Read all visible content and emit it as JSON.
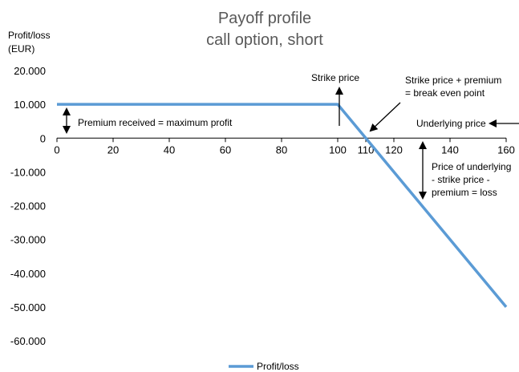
{
  "chart_data": {
    "type": "line",
    "title_lines": [
      "Payoff profile",
      "call option, short"
    ],
    "ylabel_lines": [
      "Profit/loss",
      "(EUR)"
    ],
    "xlabel": "Underlying price",
    "xlim": [
      0,
      160
    ],
    "ylim": [
      -60000,
      20000
    ],
    "x_ticks": [
      0,
      20,
      40,
      60,
      80,
      100,
      110,
      120,
      140,
      160
    ],
    "y_ticks": [
      20000,
      10000,
      0,
      -10000,
      -20000,
      -30000,
      -40000,
      -50000,
      -60000
    ],
    "y_tick_labels": [
      "20.000",
      "10.000",
      "0",
      "-10.000",
      "-20.000",
      "-30.000",
      "-40.000",
      "-50.000",
      "-60.000"
    ],
    "grid": false,
    "legend_position": "bottom",
    "series": [
      {
        "name": "Profit/loss",
        "color": "#5b9bd5",
        "x": [
          0,
          100,
          110,
          160
        ],
        "y": [
          10000,
          10000,
          0,
          -50000
        ]
      }
    ],
    "annotations": {
      "strike": "Strike price",
      "breakeven_lines": [
        "Strike price + premium",
        "= break even point"
      ],
      "premium": "Premium received = maximum profit",
      "underlying": "Underlying price",
      "loss_lines": [
        "Price of underlying",
        "- strike price -",
        "premium = loss"
      ]
    }
  }
}
